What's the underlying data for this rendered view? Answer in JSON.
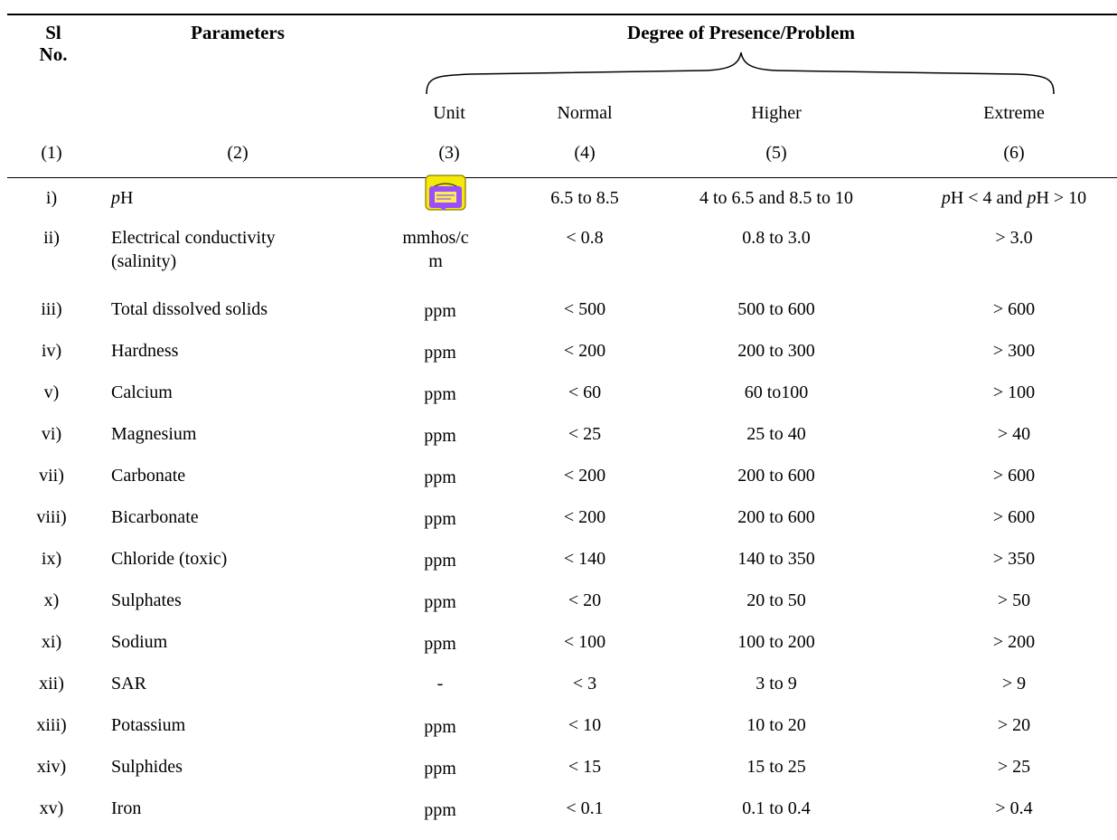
{
  "header": {
    "sl_no": "Sl",
    "sl_no2": "No.",
    "parameters": "Parameters",
    "group": "Degree of Presence/Problem",
    "unit": "Unit",
    "normal": "Normal",
    "higher": "Higher",
    "extreme": "Extreme"
  },
  "col_numbers": [
    "(1)",
    "(2)",
    "(3)",
    "(4)",
    "(5)",
    "(6)"
  ],
  "rows": [
    {
      "sl": "i)",
      "param_italic": "p",
      "param": "H",
      "unit": "",
      "normal": "6.5 to 8.5",
      "higher": "4 to 6.5 and 8.5 to 10",
      "extreme": "pH < 4 and pH > 10"
    },
    {
      "sl": "ii)",
      "param": "Electrical conductivity",
      "param2": "(salinity)",
      "unit": "mmhos/c",
      "unit2": "m",
      "normal": "< 0.8",
      "higher": "0.8 to 3.0",
      "extreme": "> 3.0"
    },
    {
      "sl": "iii)",
      "param": "Total dissolved solids",
      "unit": "ppm",
      "normal": "< 500",
      "higher": "500 to 600",
      "extreme": "> 600"
    },
    {
      "sl": "iv)",
      "param": "Hardness",
      "unit": "ppm",
      "normal": "< 200",
      "higher": "200 to 300",
      "extreme": "> 300"
    },
    {
      "sl": "v)",
      "param": "Calcium",
      "unit": "ppm",
      "normal": "< 60",
      "higher": "60 to100",
      "extreme": "> 100"
    },
    {
      "sl": "vi)",
      "param": "Magnesium",
      "unit": "ppm",
      "normal": "< 25",
      "higher": "25 to 40",
      "extreme": "> 40"
    },
    {
      "sl": "vii)",
      "param": "Carbonate",
      "unit": "ppm",
      "normal": "< 200",
      "higher": "200 to 600",
      "extreme": "> 600"
    },
    {
      "sl": "viii)",
      "param": "Bicarbonate",
      "unit": "ppm",
      "normal": "< 200",
      "higher": "200 to 600",
      "extreme": "> 600"
    },
    {
      "sl": "ix)",
      "param": "Chloride (toxic)",
      "unit": "ppm",
      "normal": "< 140",
      "higher": "140 to 350",
      "extreme": "> 350"
    },
    {
      "sl": "x)",
      "param": "Sulphates",
      "unit": "ppm",
      "normal": "< 20",
      "higher": "20 to 50",
      "extreme": "> 50"
    },
    {
      "sl": "xi)",
      "param": "Sodium",
      "unit": "ppm",
      "normal": "< 100",
      "higher": "100 to 200",
      "extreme": "> 200"
    },
    {
      "sl": "xii)",
      "param": "SAR",
      "unit": "-",
      "normal": "< 3",
      "higher": "3 to 9",
      "extreme": "> 9"
    },
    {
      "sl": "xiii)",
      "param": "Potassium",
      "unit": "ppm",
      "normal": "< 10",
      "higher": "10 to 20",
      "extreme": "> 20"
    },
    {
      "sl": "xiv)",
      "param": "Sulphides",
      "unit": "ppm",
      "normal": "< 15",
      "higher": "15 to 25",
      "extreme": "> 25"
    },
    {
      "sl": "xv)",
      "param": "Iron",
      "unit": "ppm",
      "normal": "< 0.1",
      "higher": "0.1 to 0.4",
      "extreme": "> 0.4"
    }
  ],
  "icons": {
    "comment_icon": "comment-icon"
  }
}
